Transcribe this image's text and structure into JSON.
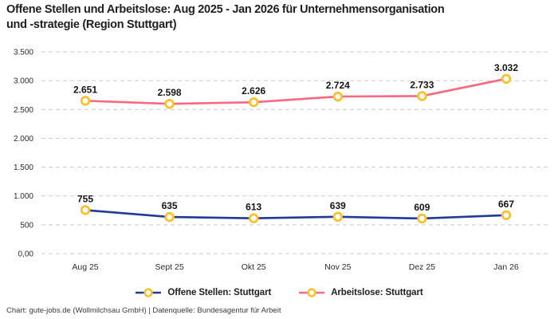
{
  "title": {
    "lines": [
      "Offene Stellen und Arbeitslose: Aug 2025 - Jan 2026 für Unternehmensorganisation",
      "und -strategie (Region Stuttgart)"
    ]
  },
  "footer": {
    "text": "Chart: gute-jobs.de (Wollmilchsau GmbH) | Datenquelle: Bundesagentur für Arbeit"
  },
  "colors": {
    "grid": "#c9c9c9",
    "axis_text": "#2b2b2b",
    "marker_ring": "#fac02f",
    "marker_fill": "#ffffff",
    "offene_stellen": "#203a9b",
    "arbeitslose": "#f8697f"
  },
  "chart_data": {
    "type": "line",
    "title": "Offene Stellen und Arbeitslose: Aug 2025 - Jan 2026 für Unternehmensorganisation und -strategie (Region Stuttgart)",
    "categories": [
      "Aug 25",
      "Sept 25",
      "Okt 25",
      "Nov 25",
      "Dez 25",
      "Jan 26"
    ],
    "series": [
      {
        "name": "Offene Stellen: Stuttgart",
        "color": "#203a9b",
        "values": [
          755,
          635,
          613,
          639,
          609,
          667
        ],
        "value_labels": [
          "755",
          "635",
          "613",
          "639",
          "609",
          "667"
        ]
      },
      {
        "name": "Arbeitslose: Stuttgart",
        "color": "#f8697f",
        "values": [
          2651,
          2598,
          2626,
          2724,
          2733,
          3032
        ],
        "value_labels": [
          "2.651",
          "2.598",
          "2.626",
          "2.724",
          "2.733",
          "3.032"
        ]
      }
    ],
    "ylim": [
      0,
      3500
    ],
    "y_ticks": [
      {
        "value": 0,
        "label": "0,00"
      },
      {
        "value": 500,
        "label": "500"
      },
      {
        "value": 1000,
        "label": "1.000"
      },
      {
        "value": 1500,
        "label": "1.500"
      },
      {
        "value": 2000,
        "label": "2.000"
      },
      {
        "value": 2500,
        "label": "2.500"
      },
      {
        "value": 3000,
        "label": "3.000"
      },
      {
        "value": 3500,
        "label": "3.500"
      }
    ],
    "grid": "horizontal-dashed",
    "legend_position": "bottom",
    "marker": {
      "shape": "circle",
      "ring_color": "#fac02f",
      "fill": "#ffffff"
    }
  }
}
